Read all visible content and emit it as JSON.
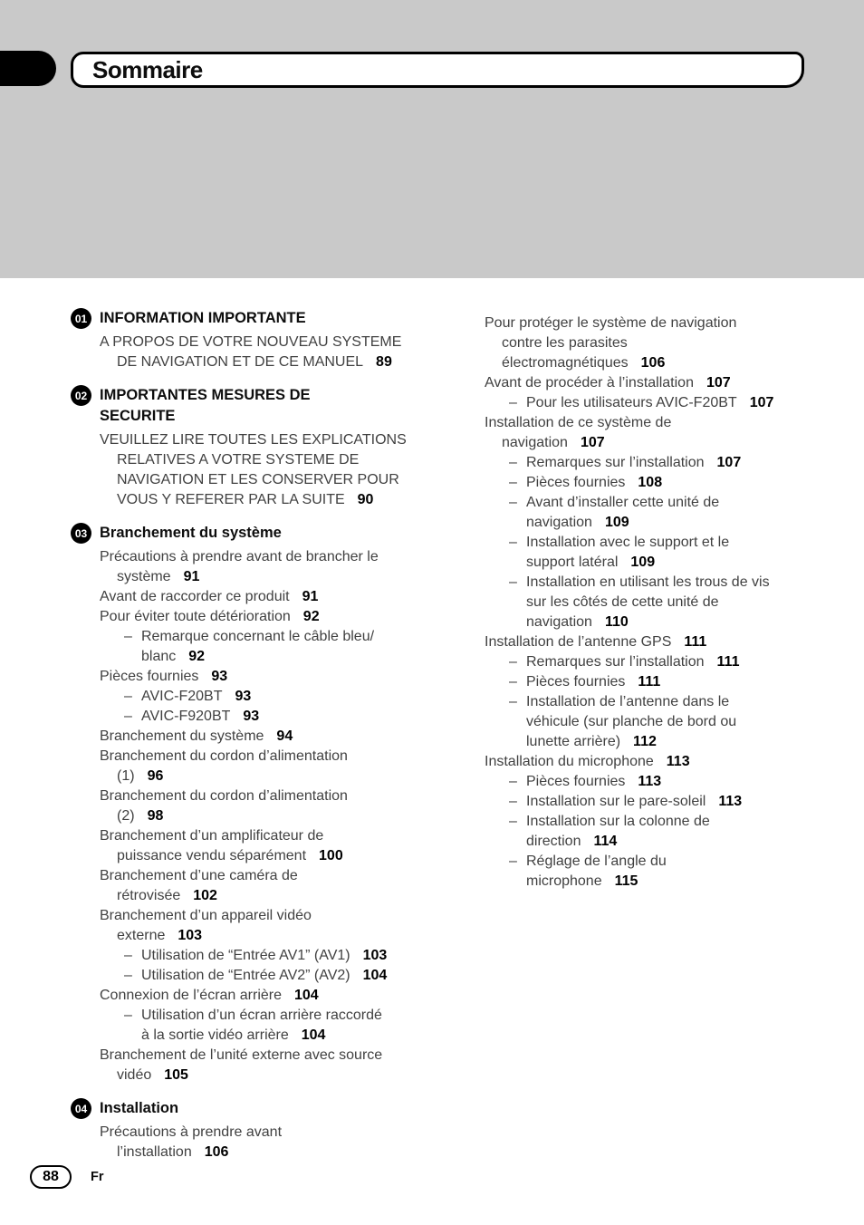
{
  "header": {
    "title": "Sommaire"
  },
  "footer": {
    "page_number": "88",
    "language": "Fr"
  },
  "colors": {
    "band_gray": "#c9c9c9",
    "body_text": "#414141",
    "accent_black": "#000000"
  },
  "toc": {
    "columns": [
      {
        "blocks": [
          {
            "type": "section",
            "num": "01",
            "title": "INFORMATION IMPORTANTE"
          },
          {
            "type": "entry",
            "level": 1,
            "text": "A PROPOS DE VOTRE NOUVEAU SYSTEME\nDE NAVIGATION ET DE CE MANUEL",
            "page": "89"
          },
          {
            "type": "section",
            "num": "02",
            "title": "IMPORTANTES MESURES DE\nSECURITE"
          },
          {
            "type": "entry",
            "level": 1,
            "text": "VEUILLEZ LIRE TOUTES LES EXPLICATIONS\nRELATIVES A VOTRE SYSTEME DE\nNAVIGATION ET LES CONSERVER POUR\nVOUS Y REFERER PAR LA SUITE",
            "page": "90"
          },
          {
            "type": "section",
            "num": "03",
            "title": "Branchement du système"
          },
          {
            "type": "entry",
            "level": 1,
            "text": "Précautions à prendre avant de brancher le\nsystème",
            "page": "91"
          },
          {
            "type": "entry",
            "level": 1,
            "text": "Avant de raccorder ce produit",
            "page": "91"
          },
          {
            "type": "entry",
            "level": 1,
            "text": "Pour éviter toute détérioration",
            "page": "92"
          },
          {
            "type": "entry",
            "level": 2,
            "marker": "–",
            "text": "Remarque concernant le câble bleu/\nblanc",
            "page": "92"
          },
          {
            "type": "entry",
            "level": 1,
            "text": "Pièces fournies",
            "page": "93"
          },
          {
            "type": "entry",
            "level": 2,
            "marker": "–",
            "text": "AVIC-F20BT",
            "page": "93"
          },
          {
            "type": "entry",
            "level": 2,
            "marker": "–",
            "text": "AVIC-F920BT",
            "page": "93"
          },
          {
            "type": "entry",
            "level": 1,
            "text": "Branchement du système",
            "page": "94"
          },
          {
            "type": "entry",
            "level": 1,
            "text": "Branchement du cordon d’alimentation\n(1)",
            "page": "96"
          },
          {
            "type": "entry",
            "level": 1,
            "text": "Branchement du cordon d’alimentation\n(2)",
            "page": "98"
          },
          {
            "type": "entry",
            "level": 1,
            "text": "Branchement d’un amplificateur de\npuissance vendu séparément",
            "page": "100"
          },
          {
            "type": "entry",
            "level": 1,
            "text": "Branchement d’une caméra de\nrétrovisée",
            "page": "102"
          },
          {
            "type": "entry",
            "level": 1,
            "text": "Branchement d’un appareil vidéo\nexterne",
            "page": "103"
          },
          {
            "type": "entry",
            "level": 2,
            "marker": "–",
            "text": "Utilisation de “Entrée AV1” (AV1)",
            "page": "103"
          },
          {
            "type": "entry",
            "level": 2,
            "marker": "–",
            "text": "Utilisation de “Entrée AV2” (AV2)",
            "page": "104"
          },
          {
            "type": "entry",
            "level": 1,
            "text": "Connexion de l’écran arrière",
            "page": "104"
          },
          {
            "type": "entry",
            "level": 2,
            "marker": "–",
            "text": "Utilisation d’un écran arrière raccordé\nà la sortie vidéo arrière",
            "page": "104"
          },
          {
            "type": "entry",
            "level": 1,
            "text": "Branchement de l’unité externe avec source\nvidéo",
            "page": "105"
          },
          {
            "type": "section",
            "num": "04",
            "title": "Installation"
          },
          {
            "type": "entry",
            "level": 1,
            "text": "Précautions à prendre avant\nl’installation",
            "page": "106"
          }
        ]
      },
      {
        "blocks": [
          {
            "type": "entry",
            "level": 1,
            "text": "Pour protéger le système de navigation\ncontre les parasites\nélectromagnétiques",
            "page": "106"
          },
          {
            "type": "entry",
            "level": 1,
            "text": "Avant de procéder à l’installation",
            "page": "107"
          },
          {
            "type": "entry",
            "level": 2,
            "marker": "–",
            "text": "Pour les utilisateurs AVIC-F20BT",
            "page": "107"
          },
          {
            "type": "entry",
            "level": 1,
            "text": "Installation de ce système de\nnavigation",
            "page": "107"
          },
          {
            "type": "entry",
            "level": 2,
            "marker": "–",
            "text": "Remarques sur l’installation",
            "page": "107"
          },
          {
            "type": "entry",
            "level": 2,
            "marker": "–",
            "text": "Pièces fournies",
            "page": "108"
          },
          {
            "type": "entry",
            "level": 2,
            "marker": "–",
            "text": "Avant d’installer cette unité de\nnavigation",
            "page": "109"
          },
          {
            "type": "entry",
            "level": 2,
            "marker": "–",
            "text": "Installation avec le support et le\nsupport latéral",
            "page": "109"
          },
          {
            "type": "entry",
            "level": 2,
            "marker": "–",
            "text": "Installation en utilisant les trous de vis\nsur les côtés de cette unité de\nnavigation",
            "page": "110"
          },
          {
            "type": "entry",
            "level": 1,
            "text": "Installation de l’antenne GPS",
            "page": "111"
          },
          {
            "type": "entry",
            "level": 2,
            "marker": "–",
            "text": "Remarques sur l’installation",
            "page": "111"
          },
          {
            "type": "entry",
            "level": 2,
            "marker": "–",
            "text": "Pièces fournies",
            "page": "111"
          },
          {
            "type": "entry",
            "level": 2,
            "marker": "–",
            "text": "Installation de l’antenne dans le\nvéhicule (sur planche de bord ou\nlunette arrière)",
            "page": "112"
          },
          {
            "type": "entry",
            "level": 1,
            "text": "Installation du microphone",
            "page": "113"
          },
          {
            "type": "entry",
            "level": 2,
            "marker": "–",
            "text": "Pièces fournies",
            "page": "113"
          },
          {
            "type": "entry",
            "level": 2,
            "marker": "–",
            "text": "Installation sur le pare-soleil",
            "page": "113"
          },
          {
            "type": "entry",
            "level": 2,
            "marker": "–",
            "text": "Installation sur la colonne de\ndirection",
            "page": "114"
          },
          {
            "type": "entry",
            "level": 2,
            "marker": "–",
            "text": "Réglage de l’angle du\nmicrophone",
            "page": "115"
          }
        ]
      }
    ]
  }
}
